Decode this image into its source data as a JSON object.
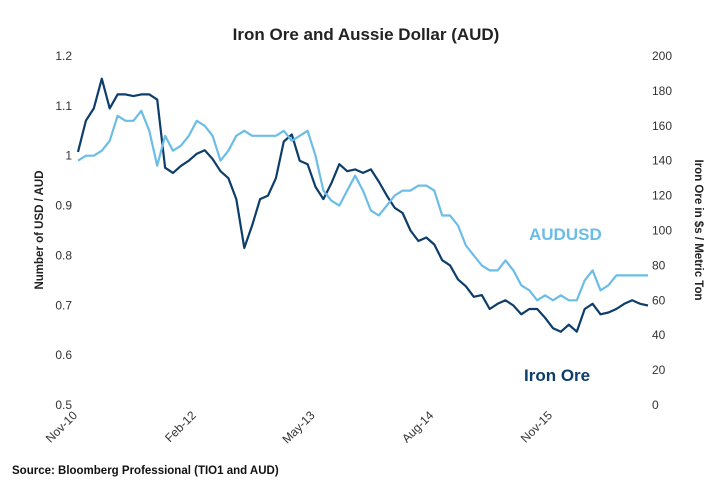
{
  "chart_data": {
    "type": "line",
    "title": "Iron Ore and Aussie Dollar (AUD)",
    "ylabel_left": "Number of USD / AUD",
    "ylabel_right": "Iron Ore in $s / Metric Ton",
    "ylim_left": [
      0.5,
      1.2
    ],
    "ylim_right": [
      0,
      200
    ],
    "yticks_left": [
      "0.5",
      "0.6",
      "0.7",
      "0.8",
      "0.9",
      "1",
      "1.1",
      "1.2"
    ],
    "yticks_right": [
      "0",
      "20",
      "40",
      "60",
      "80",
      "100",
      "120",
      "140",
      "160",
      "180",
      "200"
    ],
    "x_tick_labels": [
      "Nov-10",
      "Feb-12",
      "May-13",
      "Aug-14",
      "Nov-15"
    ],
    "x_tick_dates": [
      "2010-11",
      "2012-02",
      "2013-05",
      "2014-08",
      "2015-11"
    ],
    "xlim": [
      "2010-11",
      "2016-11"
    ],
    "grid": false,
    "legend": "direct labels",
    "colors": {
      "audusd": "#6cbde6",
      "iron_ore": "#0d3e6b"
    },
    "series": [
      {
        "name": "AUDUSD",
        "axis": "left",
        "x": [
          "2010-11",
          "2010-12",
          "2011-01",
          "2011-02",
          "2011-03",
          "2011-04",
          "2011-05",
          "2011-06",
          "2011-07",
          "2011-08",
          "2011-09",
          "2011-10",
          "2011-11",
          "2011-12",
          "2012-01",
          "2012-02",
          "2012-03",
          "2012-04",
          "2012-05",
          "2012-06",
          "2012-07",
          "2012-08",
          "2012-09",
          "2012-10",
          "2012-11",
          "2012-12",
          "2013-01",
          "2013-02",
          "2013-03",
          "2013-04",
          "2013-05",
          "2013-06",
          "2013-07",
          "2013-08",
          "2013-09",
          "2013-10",
          "2013-11",
          "2013-12",
          "2014-01",
          "2014-02",
          "2014-03",
          "2014-04",
          "2014-05",
          "2014-06",
          "2014-07",
          "2014-08",
          "2014-09",
          "2014-10",
          "2014-11",
          "2014-12",
          "2015-01",
          "2015-02",
          "2015-03",
          "2015-04",
          "2015-05",
          "2015-06",
          "2015-07",
          "2015-08",
          "2015-09",
          "2015-10",
          "2015-11",
          "2015-12",
          "2016-01",
          "2016-02",
          "2016-03",
          "2016-04",
          "2016-05",
          "2016-06",
          "2016-07",
          "2016-08",
          "2016-09",
          "2016-10",
          "2016-11"
        ],
        "y": [
          0.99,
          1.0,
          1.0,
          1.01,
          1.03,
          1.08,
          1.07,
          1.07,
          1.09,
          1.05,
          0.98,
          1.04,
          1.01,
          1.02,
          1.04,
          1.07,
          1.06,
          1.04,
          0.99,
          1.01,
          1.04,
          1.05,
          1.04,
          1.04,
          1.04,
          1.04,
          1.05,
          1.03,
          1.04,
          1.05,
          1.0,
          0.93,
          0.91,
          0.9,
          0.93,
          0.96,
          0.93,
          0.89,
          0.88,
          0.9,
          0.92,
          0.93,
          0.93,
          0.94,
          0.94,
          0.93,
          0.88,
          0.88,
          0.86,
          0.82,
          0.8,
          0.78,
          0.77,
          0.77,
          0.79,
          0.77,
          0.74,
          0.73,
          0.71,
          0.72,
          0.71,
          0.72,
          0.71,
          0.71,
          0.75,
          0.77,
          0.73,
          0.74,
          0.76,
          0.76,
          0.76,
          0.76,
          0.76
        ]
      },
      {
        "name": "Iron Ore",
        "axis": "right",
        "x": [
          "2010-11",
          "2010-12",
          "2011-01",
          "2011-02",
          "2011-03",
          "2011-04",
          "2011-05",
          "2011-06",
          "2011-07",
          "2011-08",
          "2011-09",
          "2011-10",
          "2011-11",
          "2011-12",
          "2012-01",
          "2012-02",
          "2012-03",
          "2012-04",
          "2012-05",
          "2012-06",
          "2012-07",
          "2012-08",
          "2012-09",
          "2012-10",
          "2012-11",
          "2012-12",
          "2013-01",
          "2013-02",
          "2013-03",
          "2013-04",
          "2013-05",
          "2013-06",
          "2013-07",
          "2013-08",
          "2013-09",
          "2013-10",
          "2013-11",
          "2013-12",
          "2014-01",
          "2014-02",
          "2014-03",
          "2014-04",
          "2014-05",
          "2014-06",
          "2014-07",
          "2014-08",
          "2014-09",
          "2014-10",
          "2014-11",
          "2014-12",
          "2015-01",
          "2015-02",
          "2015-03",
          "2015-04",
          "2015-05",
          "2015-06",
          "2015-07",
          "2015-08",
          "2015-09",
          "2015-10",
          "2015-11",
          "2015-12",
          "2016-01",
          "2016-02",
          "2016-03",
          "2016-04",
          "2016-05",
          "2016-06",
          "2016-07",
          "2016-08",
          "2016-09",
          "2016-10",
          "2016-11"
        ],
        "y": [
          145,
          163,
          170,
          187,
          170,
          178,
          178,
          177,
          178,
          178,
          175,
          136,
          133,
          137,
          140,
          144,
          146,
          141,
          134,
          130,
          118,
          90,
          103,
          118,
          120,
          130,
          151,
          155,
          140,
          138,
          125,
          118,
          127,
          138,
          134,
          135,
          133,
          135,
          128,
          120,
          113,
          110,
          100,
          94,
          96,
          92,
          83,
          80,
          72,
          68,
          62,
          63,
          55,
          58,
          60,
          57,
          52,
          55,
          55,
          50,
          44,
          42,
          46,
          42,
          55,
          58,
          52,
          53,
          55,
          58,
          60,
          58,
          57
        ]
      }
    ]
  },
  "series_labels": {
    "audusd": "AUDUSD",
    "iron_ore": "Iron Ore"
  },
  "source": "Source: Bloomberg Professional (TIO1 and AUD)"
}
